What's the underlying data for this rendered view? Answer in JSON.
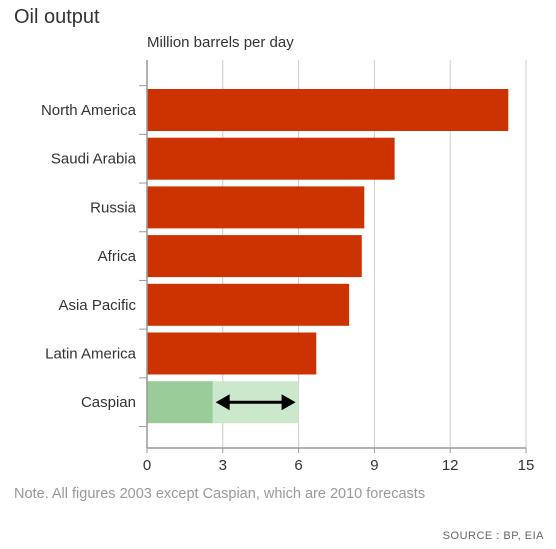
{
  "chart_data": {
    "type": "bar",
    "orientation": "horizontal",
    "title": "Oil output",
    "ylabel": "Million barrels per day",
    "categories": [
      "North America",
      "Saudi Arabia",
      "Russia",
      "Africa",
      "Asia Pacific",
      "Latin America",
      "Caspian"
    ],
    "values": [
      14.3,
      9.8,
      8.6,
      8.5,
      8.0,
      6.7,
      2.6
    ],
    "range_forecast": {
      "category": "Caspian",
      "low": 2.6,
      "high": 6.0
    },
    "xlim": [
      0,
      15
    ],
    "xticks": [
      0,
      3,
      6,
      9,
      12,
      15
    ],
    "grid": true,
    "colors": {
      "bar": "#cc3300",
      "forecast_low": "#99cc99",
      "forecast_range": "#cce8cc",
      "arrow": "#000000",
      "grid": "#cccccc"
    }
  },
  "note": "Note. All figures 2003 except Caspian, which are 2010 forecasts",
  "source": "SOURCE : BP, EIA"
}
